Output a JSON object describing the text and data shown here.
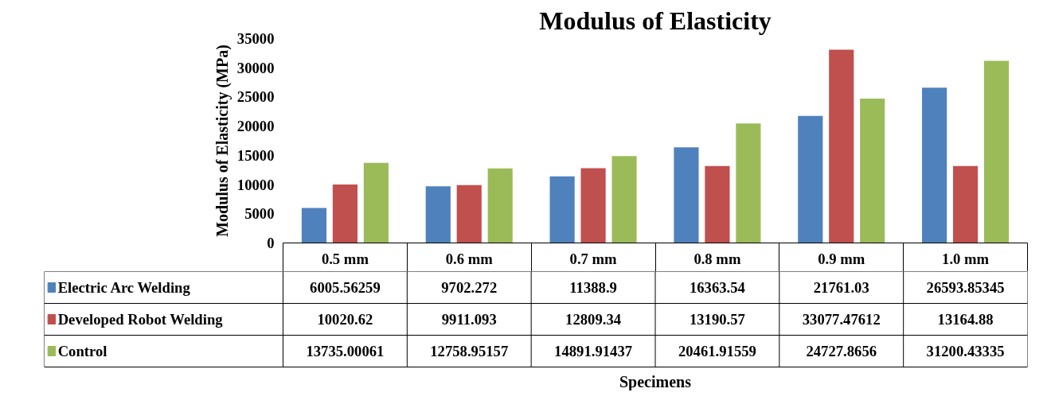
{
  "chart_data": {
    "type": "bar",
    "title": "Modulus of Elasticity",
    "annotations": [
      "Specimens"
    ],
    "ylabel": "Modulus of Elasticity (MPa)",
    "categories": [
      "0.5 mm",
      "0.6 mm",
      "0.7 mm",
      "0.8 mm",
      "0.9 mm",
      "1.0 mm"
    ],
    "series": [
      {
        "name": "Electric Arc Welding",
        "color": "#4f81bd",
        "values": [
          6005.56259,
          9702.272,
          11388.9,
          16363.54,
          21761.03,
          26593.85345
        ]
      },
      {
        "name": "Developed Robot Welding",
        "color": "#c0504d",
        "values": [
          10020.62,
          9911.093,
          12809.34,
          13190.57,
          33077.47612,
          13164.88
        ]
      },
      {
        "name": "Control",
        "color": "#9bbb59",
        "values": [
          13735.00061,
          12758.95157,
          14891.91437,
          20461.91559,
          24727.8656,
          31200.43335
        ]
      }
    ],
    "ylim": [
      0,
      35000
    ],
    "yticks": [
      0,
      5000,
      10000,
      15000,
      20000,
      25000,
      30000,
      35000
    ],
    "grid": false,
    "legend": "bottom",
    "data_labels": true
  }
}
